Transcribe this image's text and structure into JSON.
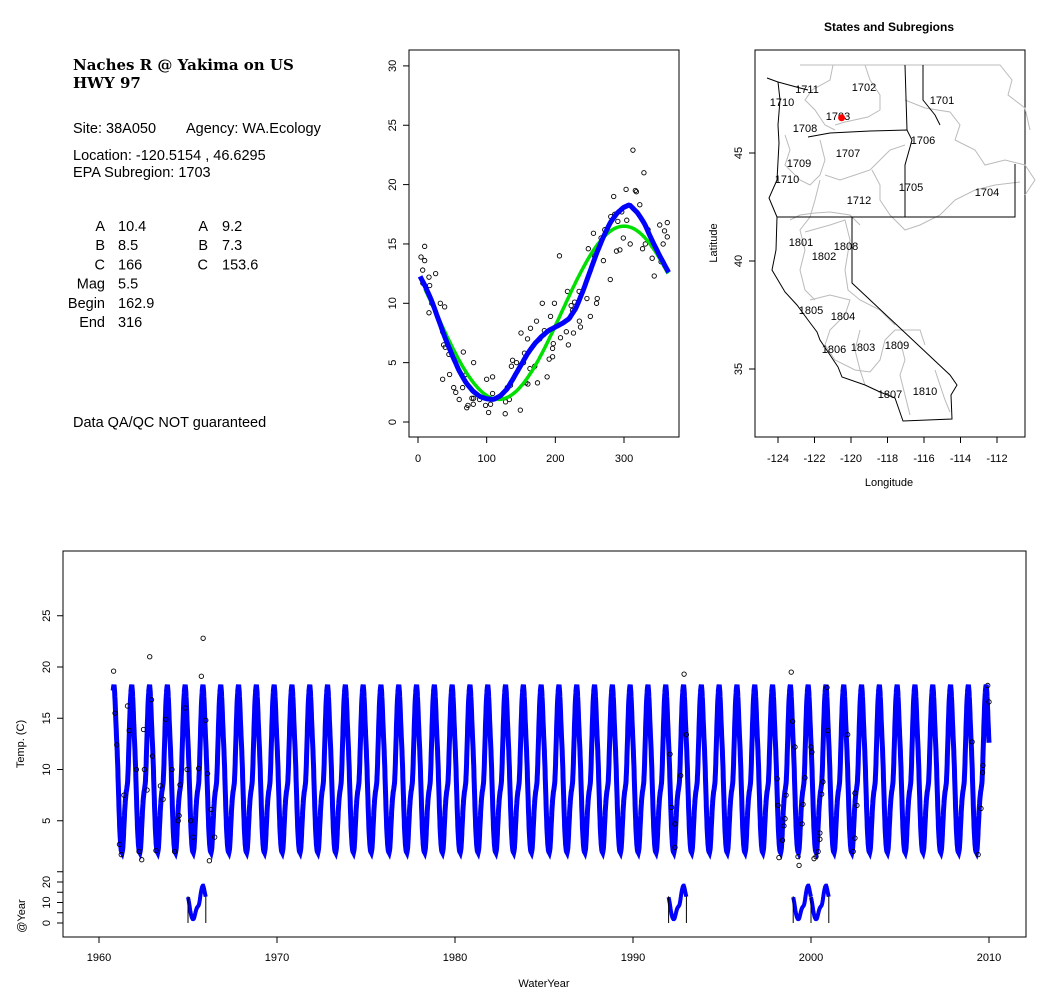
{
  "info": {
    "title_line1": "Naches R @ Yakima on US",
    "title_line2": "HWY 97",
    "site": "Site: 38A050",
    "agency": "Agency: WA.Ecology",
    "location": "Location: -120.5154 , 46.6295",
    "subregion": "EPA Subregion: 1703",
    "params_left": [
      {
        "label": "A",
        "value": "10.4"
      },
      {
        "label": "B",
        "value": "8.5"
      },
      {
        "label": "C",
        "value": "166"
      },
      {
        "label": "Mag",
        "value": "5.5"
      },
      {
        "label": "Begin",
        "value": "162.9"
      },
      {
        "label": "End",
        "value": "316"
      }
    ],
    "params_right": [
      {
        "label": "A",
        "value": "9.2"
      },
      {
        "label": "B",
        "value": "7.3"
      },
      {
        "label": "C",
        "value": "153.6"
      }
    ],
    "disclaimer": "Data QA/QC NOT guaranteed",
    "disclaimer_color": "#c0392b"
  },
  "colors": {
    "fit_blue": "#0000ff",
    "fit_green": "#00e000",
    "site_marker": "#ff0000",
    "state_border": "#000000",
    "subregion_border": "#bbbbbb"
  },
  "chart_data": [
    {
      "type": "scatter",
      "title": "",
      "xlabel": "",
      "ylabel": "",
      "xlim": [
        -5,
        375
      ],
      "ylim": [
        -1,
        31
      ],
      "xticks": [
        "0",
        "100",
        "200",
        "300"
      ],
      "yticks": [
        "0",
        "5",
        "10",
        "15",
        "20",
        "25",
        "30"
      ],
      "points": [
        [
          4.4,
          13.9
        ],
        [
          6.8,
          12.8
        ],
        [
          9.7,
          13.6
        ],
        [
          9.7,
          14.8
        ],
        [
          16,
          12.2
        ],
        [
          17,
          11.5
        ],
        [
          7,
          11.7
        ],
        [
          25.7,
          12.5
        ],
        [
          16,
          9.2
        ],
        [
          20,
          10
        ],
        [
          32.5,
          10
        ],
        [
          38.8,
          9.7
        ],
        [
          35.9,
          7.6
        ],
        [
          37.3,
          6.5
        ],
        [
          39.7,
          6.3
        ],
        [
          45,
          5.7
        ],
        [
          46,
          4
        ],
        [
          35.9,
          3.6
        ],
        [
          52,
          2.9
        ],
        [
          55,
          2.5
        ],
        [
          60,
          1.9
        ],
        [
          65,
          2.9
        ],
        [
          66,
          5.9
        ],
        [
          70,
          4
        ],
        [
          71,
          1.2
        ],
        [
          72.7,
          1.4
        ],
        [
          78.5,
          2
        ],
        [
          80.5,
          1.5
        ],
        [
          81,
          5
        ],
        [
          81,
          2
        ],
        [
          89.7,
          1.9
        ],
        [
          98.4,
          1.4
        ],
        [
          100,
          3.6
        ],
        [
          102.8,
          0.8
        ],
        [
          105.7,
          1.5
        ],
        [
          108.6,
          2.4
        ],
        [
          108.6,
          3.8
        ],
        [
          127,
          0.7
        ],
        [
          127.5,
          1.7
        ],
        [
          130,
          2.9
        ],
        [
          133,
          1.9
        ],
        [
          134.7,
          3.1
        ],
        [
          136,
          4.7
        ],
        [
          137.7,
          5.2
        ],
        [
          143.5,
          5
        ],
        [
          149,
          1
        ],
        [
          150,
          7.5
        ],
        [
          153.7,
          5
        ],
        [
          155,
          5.8
        ],
        [
          157,
          3.3
        ],
        [
          159.5,
          7
        ],
        [
          160,
          3.2
        ],
        [
          163,
          4.5
        ],
        [
          163.8,
          7.9
        ],
        [
          170,
          4.7
        ],
        [
          172.6,
          8.5
        ],
        [
          174,
          3.3
        ],
        [
          177.4,
          7
        ],
        [
          181,
          10
        ],
        [
          184,
          7.7
        ],
        [
          188,
          3.8
        ],
        [
          191,
          5.3
        ],
        [
          193,
          8.9
        ],
        [
          196,
          5.5
        ],
        [
          196,
          6.2
        ],
        [
          197,
          6.6
        ],
        [
          198.7,
          10
        ],
        [
          206,
          14
        ],
        [
          207.5,
          7.1
        ],
        [
          216,
          7.6
        ],
        [
          217.6,
          11
        ],
        [
          219,
          6.5
        ],
        [
          223,
          9.8
        ],
        [
          225,
          9.4
        ],
        [
          226.4,
          7.5
        ],
        [
          228,
          10.1
        ],
        [
          234.6,
          11
        ],
        [
          235,
          8.5
        ],
        [
          236.6,
          8
        ],
        [
          246,
          10.4
        ],
        [
          248,
          14.6
        ],
        [
          251,
          8.9
        ],
        [
          255.5,
          15.9
        ],
        [
          257,
          14
        ],
        [
          260,
          10
        ],
        [
          261,
          10.4
        ],
        [
          266.6,
          15.5
        ],
        [
          270,
          13.6
        ],
        [
          272,
          16.2
        ],
        [
          280,
          12
        ],
        [
          280.7,
          17.3
        ],
        [
          285,
          19
        ],
        [
          286.5,
          17.5
        ],
        [
          289,
          14.4
        ],
        [
          291,
          16.9
        ],
        [
          294,
          14.5
        ],
        [
          296.7,
          17.7
        ],
        [
          299,
          15.5
        ],
        [
          303,
          19.6
        ],
        [
          304,
          17
        ],
        [
          309,
          15
        ],
        [
          313,
          22.9
        ],
        [
          316.5,
          19.5
        ],
        [
          318,
          19.4
        ],
        [
          323,
          18.3
        ],
        [
          327,
          14.6
        ],
        [
          329,
          21
        ],
        [
          331,
          15
        ],
        [
          335,
          16.2
        ],
        [
          341,
          13.8
        ],
        [
          344,
          12.3
        ],
        [
          342,
          14.8
        ],
        [
          352,
          16.6
        ],
        [
          354,
          13.5
        ],
        [
          357,
          15
        ],
        [
          359,
          16.1
        ],
        [
          363,
          16.8
        ],
        [
          363,
          15.6
        ]
      ],
      "green_fit": {
        "mean": 9.2,
        "amplitude": 7.3,
        "peak_day": 300,
        "period": 365
      },
      "blue_fit": [
        [
          0,
          12.6
        ],
        [
          10,
          11.5
        ],
        [
          20,
          10.2
        ],
        [
          30,
          8.6
        ],
        [
          40,
          7
        ],
        [
          50,
          5.6
        ],
        [
          60,
          4.3
        ],
        [
          70,
          3.3
        ],
        [
          80,
          2.6
        ],
        [
          90,
          2.15
        ],
        [
          100,
          1.95
        ],
        [
          110,
          1.9
        ],
        [
          120,
          2.2
        ],
        [
          130,
          2.8
        ],
        [
          140,
          3.8
        ],
        [
          150,
          4.8
        ],
        [
          160,
          5.8
        ],
        [
          170,
          6.6
        ],
        [
          180,
          7.2
        ],
        [
          190,
          7.7
        ],
        [
          200,
          8
        ],
        [
          210,
          8.3
        ],
        [
          220,
          8.7
        ],
        [
          230,
          9.6
        ],
        [
          240,
          11
        ],
        [
          250,
          12.6
        ],
        [
          260,
          14.2
        ],
        [
          270,
          15.6
        ],
        [
          280,
          16.8
        ],
        [
          290,
          17.6
        ],
        [
          300,
          18.1
        ],
        [
          308,
          18.3
        ],
        [
          320,
          17.6
        ],
        [
          330,
          16.7
        ],
        [
          340,
          15.4
        ],
        [
          352,
          14
        ],
        [
          365,
          12.6
        ]
      ]
    },
    {
      "type": "map",
      "title": "States and Subregions",
      "xlabel": "Longitude",
      "ylabel": "Latitude",
      "xlim": [
        -125.2,
        -110.4
      ],
      "ylim": [
        31.8,
        49.7
      ],
      "xticks": [
        "-124",
        "-122",
        "-120",
        "-118",
        "-116",
        "-114",
        "-112"
      ],
      "yticks": [
        "35",
        "40",
        "45"
      ],
      "site": {
        "lon": -120.5154,
        "lat": 46.6295
      },
      "regions": [
        "1702",
        "1711",
        "1701",
        "1710",
        "1703",
        "1708",
        "1706",
        "1707",
        "1709",
        "1710",
        "1705",
        "1704",
        "1712",
        "1801",
        "1808",
        "1802",
        "1805",
        "1804",
        "1806",
        "1803",
        "1809",
        "1807",
        "1810"
      ]
    },
    {
      "type": "line",
      "title": "",
      "xlabel": "WaterYear",
      "ylabel": "Temp. (C)",
      "strip_label": "@Year",
      "xlim": [
        1958,
        2012
      ],
      "xticks": [
        "1960",
        "1970",
        "1980",
        "1990",
        "2000",
        "2010"
      ],
      "yticks": [
        "5",
        "10",
        "15",
        "20",
        "25"
      ],
      "strip_ticks": [
        "0",
        "10",
        "20"
      ],
      "series_range": [
        1960.8,
        2010.0
      ],
      "strip_years": [
        1965,
        1992,
        1999,
        2000
      ],
      "points": [
        [
          1960.82,
          19.6
        ],
        [
          1960.9,
          15.5
        ],
        [
          1961.0,
          12.4
        ],
        [
          1961.15,
          2.7
        ],
        [
          1961.25,
          1.7
        ],
        [
          1961.4,
          7.5
        ],
        [
          1961.6,
          16.2
        ],
        [
          1961.7,
          13.8
        ],
        [
          1962.1,
          10
        ],
        [
          1962.25,
          2.0
        ],
        [
          1962.4,
          1.2
        ],
        [
          1962.5,
          13.9
        ],
        [
          1962.55,
          10
        ],
        [
          1962.7,
          8
        ],
        [
          1962.85,
          21
        ],
        [
          1962.95,
          16.8
        ],
        [
          1963.0,
          11.3
        ],
        [
          1963.2,
          2.1
        ],
        [
          1963.45,
          8.4
        ],
        [
          1963.6,
          7.1
        ],
        [
          1963.75,
          14.9
        ],
        [
          1964.1,
          10
        ],
        [
          1964.25,
          2.0
        ],
        [
          1964.45,
          5
        ],
        [
          1964.5,
          5.5
        ],
        [
          1964.55,
          8.5
        ],
        [
          1964.85,
          16
        ],
        [
          1964.95,
          10
        ],
        [
          1965.15,
          5
        ],
        [
          1965.3,
          3.4
        ],
        [
          1965.6,
          10.1
        ],
        [
          1965.75,
          19.1
        ],
        [
          1965.85,
          22.8
        ],
        [
          1966.0,
          14.8
        ],
        [
          1966.1,
          9.6
        ],
        [
          1966.2,
          1.1
        ],
        [
          1966.3,
          6.1
        ],
        [
          1966.5,
          3.4
        ],
        [
          1992.08,
          11.5
        ],
        [
          1992.17,
          6.3
        ],
        [
          1992.36,
          4.7
        ],
        [
          1992.36,
          2.4
        ],
        [
          1992.68,
          9.4
        ],
        [
          1992.87,
          19.3
        ],
        [
          1993.0,
          13.4
        ],
        [
          1998.1,
          9.1
        ],
        [
          1998.15,
          6.5
        ],
        [
          1998.2,
          1.4
        ],
        [
          1998.4,
          3.1
        ],
        [
          1998.48,
          4.5
        ],
        [
          1998.54,
          5.2
        ],
        [
          1998.6,
          7.5
        ],
        [
          1998.89,
          19.5
        ],
        [
          1998.97,
          14.7
        ],
        [
          1999.1,
          12.2
        ],
        [
          1999.27,
          1.5
        ],
        [
          1999.33,
          0.65
        ],
        [
          1999.5,
          4.7
        ],
        [
          1999.55,
          6.6
        ],
        [
          1999.66,
          9.2
        ],
        [
          2000.0,
          12.2
        ],
        [
          2000.05,
          11.7
        ],
        [
          2000.17,
          1.3
        ],
        [
          2000.28,
          1.5
        ],
        [
          2000.4,
          2.0
        ],
        [
          2000.5,
          3.2
        ],
        [
          2000.5,
          3.8
        ],
        [
          2000.6,
          7.6
        ],
        [
          2000.67,
          8.8
        ],
        [
          2000.9,
          18
        ],
        [
          2000.95,
          13.8
        ],
        [
          2002.06,
          13.4
        ],
        [
          2002.37,
          2.0
        ],
        [
          2002.47,
          3.3
        ],
        [
          2002.47,
          7.7
        ],
        [
          2002.58,
          6.5
        ],
        [
          2009.05,
          12.7
        ],
        [
          2009.39,
          1.7
        ],
        [
          2009.55,
          6.2
        ],
        [
          2009.64,
          9.7
        ],
        [
          2009.66,
          10.4
        ],
        [
          2009.93,
          18.2
        ],
        [
          2010.0,
          16.6
        ]
      ]
    }
  ]
}
